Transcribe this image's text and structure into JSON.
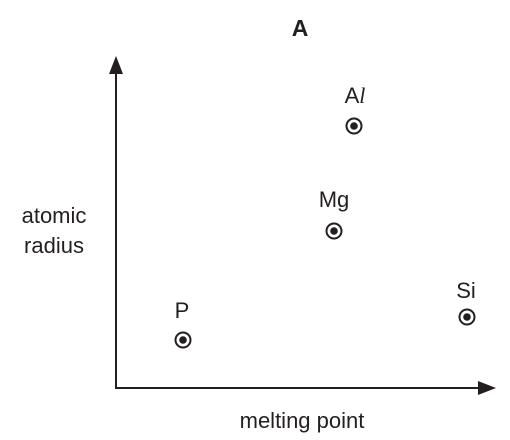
{
  "title": "A",
  "xlabel": "melting point",
  "ylabel_line1": "atomic",
  "ylabel_line2": "radius",
  "points": [
    {
      "label": "P",
      "melting_point_rank": 1,
      "atomic_radius_rank": 1
    },
    {
      "label": "Mg",
      "melting_point_rank": 2,
      "atomic_radius_rank": 3
    },
    {
      "label": "Al",
      "melting_point_rank": 3,
      "atomic_radius_rank": 4
    },
    {
      "label": "Si",
      "melting_point_rank": 4,
      "atomic_radius_rank": 2
    }
  ],
  "colors": {
    "ink": "#231f20",
    "background": "#ffffff"
  }
}
